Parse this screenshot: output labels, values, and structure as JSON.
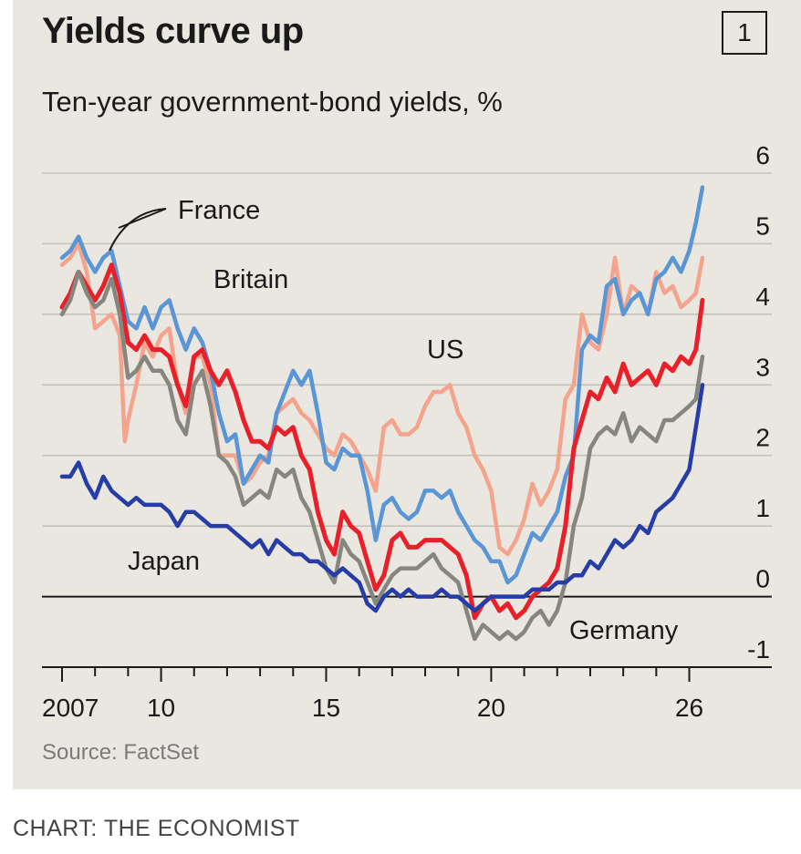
{
  "panel_number": "1",
  "source": "Source: FactSet",
  "credit": "CHART: THE ECONOMIST",
  "chart_data": {
    "type": "line",
    "title": "Yields curve up",
    "subtitle": "Ten-year government-bond yields, %",
    "xlabel": "",
    "ylabel": "",
    "xlim": [
      2006.9,
      2026.7
    ],
    "ylim": [
      -1,
      6
    ],
    "x_ticks": [
      2007,
      2008,
      2009,
      2010,
      2011,
      2012,
      2013,
      2014,
      2015,
      2016,
      2017,
      2018,
      2019,
      2020,
      2021,
      2022,
      2023,
      2024,
      2025,
      2026
    ],
    "x_tick_labels": [
      {
        "x": 2007,
        "label": "2007"
      },
      {
        "x": 2010,
        "label": "10"
      },
      {
        "x": 2015,
        "label": "15"
      },
      {
        "x": 2020,
        "label": "20"
      },
      {
        "x": 2026,
        "label": "26"
      }
    ],
    "y_ticks": [
      -1,
      0,
      1,
      2,
      3,
      4,
      5,
      6
    ],
    "y_tick_labels": [
      "-1",
      "0",
      "1",
      "2",
      "3",
      "4",
      "5",
      "6"
    ],
    "grid": true,
    "zero_line": true,
    "series": [
      {
        "name": "US",
        "color": "#f4a48c",
        "x": [
          2007.0,
          2007.25,
          2007.5,
          2007.75,
          2008.0,
          2008.25,
          2008.5,
          2008.75,
          2008.9,
          2009.0,
          2009.25,
          2009.5,
          2009.75,
          2010.0,
          2010.25,
          2010.5,
          2010.75,
          2011.0,
          2011.25,
          2011.5,
          2011.75,
          2012.0,
          2012.25,
          2012.5,
          2012.75,
          2013.0,
          2013.25,
          2013.5,
          2013.75,
          2014.0,
          2014.25,
          2014.5,
          2014.75,
          2015.0,
          2015.25,
          2015.5,
          2015.75,
          2016.0,
          2016.25,
          2016.5,
          2016.75,
          2017.0,
          2017.25,
          2017.5,
          2017.75,
          2018.0,
          2018.25,
          2018.5,
          2018.75,
          2019.0,
          2019.25,
          2019.5,
          2019.75,
          2020.0,
          2020.25,
          2020.5,
          2020.75,
          2021.0,
          2021.25,
          2021.5,
          2021.75,
          2022.0,
          2022.25,
          2022.5,
          2022.75,
          2023.0,
          2023.25,
          2023.5,
          2023.75,
          2024.0,
          2024.25,
          2024.5,
          2024.75,
          2025.0,
          2025.25,
          2025.5,
          2025.75,
          2026.0,
          2026.2,
          2026.4
        ],
        "y": [
          4.7,
          4.8,
          5.0,
          4.6,
          3.8,
          3.9,
          4.0,
          3.7,
          2.2,
          2.5,
          3.0,
          3.6,
          3.4,
          3.7,
          3.8,
          3.0,
          2.6,
          3.4,
          3.4,
          3.0,
          2.0,
          2.0,
          2.0,
          1.6,
          1.7,
          1.9,
          2.0,
          2.6,
          2.7,
          2.8,
          2.6,
          2.5,
          2.3,
          2.1,
          2.0,
          2.3,
          2.2,
          2.0,
          1.8,
          1.5,
          2.4,
          2.5,
          2.3,
          2.3,
          2.4,
          2.7,
          2.9,
          2.9,
          3.0,
          2.6,
          2.4,
          2.0,
          1.8,
          1.5,
          0.7,
          0.6,
          0.8,
          1.1,
          1.6,
          1.3,
          1.5,
          1.8,
          2.8,
          3.0,
          4.0,
          3.6,
          3.5,
          4.0,
          4.8,
          4.0,
          4.4,
          4.3,
          4.0,
          4.6,
          4.3,
          4.4,
          4.1,
          4.2,
          4.3,
          4.8
        ]
      },
      {
        "name": "Britain",
        "color": "#5a96d6",
        "x": [
          2007.0,
          2007.25,
          2007.5,
          2007.75,
          2008.0,
          2008.25,
          2008.5,
          2008.75,
          2009.0,
          2009.25,
          2009.5,
          2009.75,
          2010.0,
          2010.25,
          2010.5,
          2010.75,
          2011.0,
          2011.25,
          2011.5,
          2011.75,
          2012.0,
          2012.25,
          2012.5,
          2012.75,
          2013.0,
          2013.25,
          2013.5,
          2013.75,
          2014.0,
          2014.25,
          2014.5,
          2014.75,
          2015.0,
          2015.25,
          2015.5,
          2015.75,
          2016.0,
          2016.25,
          2016.5,
          2016.75,
          2017.0,
          2017.25,
          2017.5,
          2017.75,
          2018.0,
          2018.25,
          2018.5,
          2018.75,
          2019.0,
          2019.25,
          2019.5,
          2019.75,
          2020.0,
          2020.25,
          2020.5,
          2020.75,
          2021.0,
          2021.25,
          2021.5,
          2021.75,
          2022.0,
          2022.25,
          2022.5,
          2022.75,
          2023.0,
          2023.25,
          2023.5,
          2023.75,
          2024.0,
          2024.25,
          2024.5,
          2024.75,
          2025.0,
          2025.25,
          2025.5,
          2025.75,
          2026.0,
          2026.2,
          2026.4
        ],
        "y": [
          4.8,
          4.9,
          5.1,
          4.8,
          4.6,
          4.8,
          4.9,
          4.4,
          3.9,
          3.8,
          4.1,
          3.8,
          4.1,
          4.2,
          3.8,
          3.5,
          3.8,
          3.6,
          3.2,
          2.6,
          2.2,
          2.3,
          1.6,
          1.8,
          2.0,
          1.9,
          2.6,
          2.9,
          3.2,
          3.0,
          3.2,
          2.6,
          1.9,
          1.8,
          2.1,
          2.0,
          2.0,
          1.5,
          0.8,
          1.3,
          1.4,
          1.2,
          1.1,
          1.2,
          1.5,
          1.5,
          1.4,
          1.5,
          1.2,
          1.0,
          0.8,
          0.7,
          0.5,
          0.5,
          0.2,
          0.3,
          0.6,
          0.9,
          0.8,
          1.0,
          1.2,
          1.7,
          2.0,
          3.5,
          3.7,
          3.6,
          4.4,
          4.5,
          4.0,
          4.2,
          4.3,
          4.0,
          4.5,
          4.6,
          4.8,
          4.6,
          4.9,
          5.3,
          5.8
        ]
      },
      {
        "name": "France",
        "color": "#e8202a",
        "x": [
          2007.0,
          2007.25,
          2007.5,
          2007.75,
          2008.0,
          2008.25,
          2008.5,
          2008.75,
          2009.0,
          2009.25,
          2009.5,
          2009.75,
          2010.0,
          2010.25,
          2010.5,
          2010.75,
          2011.0,
          2011.25,
          2011.5,
          2011.75,
          2012.0,
          2012.25,
          2012.5,
          2012.75,
          2013.0,
          2013.25,
          2013.5,
          2013.75,
          2014.0,
          2014.25,
          2014.5,
          2014.75,
          2015.0,
          2015.25,
          2015.5,
          2015.75,
          2016.0,
          2016.25,
          2016.5,
          2016.75,
          2017.0,
          2017.25,
          2017.5,
          2017.75,
          2018.0,
          2018.25,
          2018.5,
          2018.75,
          2019.0,
          2019.25,
          2019.5,
          2019.75,
          2020.0,
          2020.25,
          2020.5,
          2020.75,
          2021.0,
          2021.25,
          2021.5,
          2021.75,
          2022.0,
          2022.25,
          2022.5,
          2022.75,
          2023.0,
          2023.25,
          2023.5,
          2023.75,
          2024.0,
          2024.25,
          2024.5,
          2024.75,
          2025.0,
          2025.25,
          2025.5,
          2025.75,
          2026.0,
          2026.2,
          2026.4
        ],
        "y": [
          4.1,
          4.3,
          4.6,
          4.4,
          4.2,
          4.4,
          4.7,
          4.3,
          3.6,
          3.5,
          3.7,
          3.5,
          3.5,
          3.4,
          3.0,
          2.7,
          3.4,
          3.5,
          3.2,
          3.0,
          3.2,
          2.9,
          2.5,
          2.2,
          2.2,
          2.1,
          2.4,
          2.3,
          2.4,
          2.0,
          1.8,
          1.2,
          0.8,
          0.6,
          1.2,
          1.0,
          0.9,
          0.5,
          0.1,
          0.3,
          0.8,
          0.9,
          0.7,
          0.7,
          0.8,
          0.8,
          0.8,
          0.7,
          0.6,
          0.3,
          -0.3,
          -0.1,
          0.0,
          -0.2,
          -0.1,
          -0.3,
          -0.2,
          0.0,
          0.1,
          0.2,
          0.4,
          1.0,
          2.1,
          2.5,
          2.9,
          2.8,
          3.1,
          2.9,
          3.3,
          3.0,
          3.1,
          3.2,
          3.0,
          3.3,
          3.2,
          3.4,
          3.3,
          3.5,
          4.2
        ]
      },
      {
        "name": "Germany",
        "color": "#85877f",
        "x": [
          2007.0,
          2007.25,
          2007.5,
          2007.75,
          2008.0,
          2008.25,
          2008.5,
          2008.75,
          2009.0,
          2009.25,
          2009.5,
          2009.75,
          2010.0,
          2010.25,
          2010.5,
          2010.75,
          2011.0,
          2011.25,
          2011.5,
          2011.75,
          2012.0,
          2012.25,
          2012.5,
          2012.75,
          2013.0,
          2013.25,
          2013.5,
          2013.75,
          2014.0,
          2014.25,
          2014.5,
          2014.75,
          2015.0,
          2015.25,
          2015.5,
          2015.75,
          2016.0,
          2016.25,
          2016.5,
          2016.75,
          2017.0,
          2017.25,
          2017.5,
          2017.75,
          2018.0,
          2018.25,
          2018.5,
          2018.75,
          2019.0,
          2019.25,
          2019.5,
          2019.75,
          2020.0,
          2020.25,
          2020.5,
          2020.75,
          2021.0,
          2021.25,
          2021.5,
          2021.75,
          2022.0,
          2022.25,
          2022.5,
          2022.75,
          2023.0,
          2023.25,
          2023.5,
          2023.75,
          2024.0,
          2024.25,
          2024.5,
          2024.75,
          2025.0,
          2025.25,
          2025.5,
          2025.75,
          2026.0,
          2026.2,
          2026.4
        ],
        "y": [
          4.0,
          4.2,
          4.6,
          4.3,
          4.1,
          4.2,
          4.5,
          4.0,
          3.1,
          3.2,
          3.4,
          3.2,
          3.2,
          3.0,
          2.5,
          2.3,
          3.0,
          3.2,
          2.7,
          2.0,
          1.9,
          1.7,
          1.3,
          1.4,
          1.5,
          1.4,
          1.8,
          1.7,
          1.8,
          1.4,
          1.2,
          0.8,
          0.4,
          0.2,
          0.8,
          0.6,
          0.5,
          0.2,
          -0.1,
          0.1,
          0.3,
          0.4,
          0.4,
          0.4,
          0.5,
          0.6,
          0.4,
          0.3,
          0.2,
          -0.2,
          -0.6,
          -0.4,
          -0.5,
          -0.6,
          -0.5,
          -0.6,
          -0.5,
          -0.3,
          -0.2,
          -0.4,
          -0.2,
          0.2,
          1.0,
          1.4,
          2.1,
          2.3,
          2.4,
          2.3,
          2.6,
          2.2,
          2.4,
          2.3,
          2.2,
          2.5,
          2.5,
          2.6,
          2.7,
          2.8,
          3.4
        ]
      },
      {
        "name": "Japan",
        "color": "#263ca6",
        "x": [
          2007.0,
          2007.25,
          2007.5,
          2007.75,
          2008.0,
          2008.25,
          2008.5,
          2008.75,
          2009.0,
          2009.25,
          2009.5,
          2009.75,
          2010.0,
          2010.25,
          2010.5,
          2010.75,
          2011.0,
          2011.25,
          2011.5,
          2011.75,
          2012.0,
          2012.25,
          2012.5,
          2012.75,
          2013.0,
          2013.25,
          2013.5,
          2013.75,
          2014.0,
          2014.25,
          2014.5,
          2014.75,
          2015.0,
          2015.25,
          2015.5,
          2015.75,
          2016.0,
          2016.25,
          2016.5,
          2016.75,
          2017.0,
          2017.25,
          2017.5,
          2017.75,
          2018.0,
          2018.25,
          2018.5,
          2018.75,
          2019.0,
          2019.25,
          2019.5,
          2019.75,
          2020.0,
          2020.25,
          2020.5,
          2020.75,
          2021.0,
          2021.25,
          2021.5,
          2021.75,
          2022.0,
          2022.25,
          2022.5,
          2022.75,
          2023.0,
          2023.25,
          2023.5,
          2023.75,
          2024.0,
          2024.25,
          2024.5,
          2024.75,
          2025.0,
          2025.25,
          2025.5,
          2025.75,
          2026.0,
          2026.2,
          2026.4
        ],
        "y": [
          1.7,
          1.7,
          1.9,
          1.6,
          1.4,
          1.7,
          1.5,
          1.4,
          1.3,
          1.4,
          1.3,
          1.3,
          1.3,
          1.2,
          1.0,
          1.2,
          1.2,
          1.1,
          1.0,
          1.0,
          1.0,
          0.9,
          0.8,
          0.7,
          0.8,
          0.6,
          0.8,
          0.7,
          0.6,
          0.6,
          0.5,
          0.5,
          0.4,
          0.3,
          0.4,
          0.3,
          0.2,
          -0.1,
          -0.2,
          0.0,
          0.1,
          0.0,
          0.1,
          0.0,
          0.0,
          0.0,
          0.1,
          0.0,
          0.0,
          -0.1,
          -0.2,
          -0.1,
          0.0,
          0.0,
          0.0,
          0.0,
          0.0,
          0.1,
          0.1,
          0.1,
          0.2,
          0.2,
          0.3,
          0.3,
          0.5,
          0.4,
          0.6,
          0.8,
          0.7,
          0.8,
          1.0,
          0.9,
          1.2,
          1.3,
          1.4,
          1.6,
          1.8,
          2.4,
          3.0
        ]
      }
    ],
    "annotations": [
      {
        "text": "France",
        "series": "France",
        "leader_line": true
      },
      {
        "text": "Britain",
        "series": "Britain"
      },
      {
        "text": "US",
        "series": "US"
      },
      {
        "text": "Japan",
        "series": "Japan"
      },
      {
        "text": "Germany",
        "series": "Germany"
      }
    ]
  }
}
